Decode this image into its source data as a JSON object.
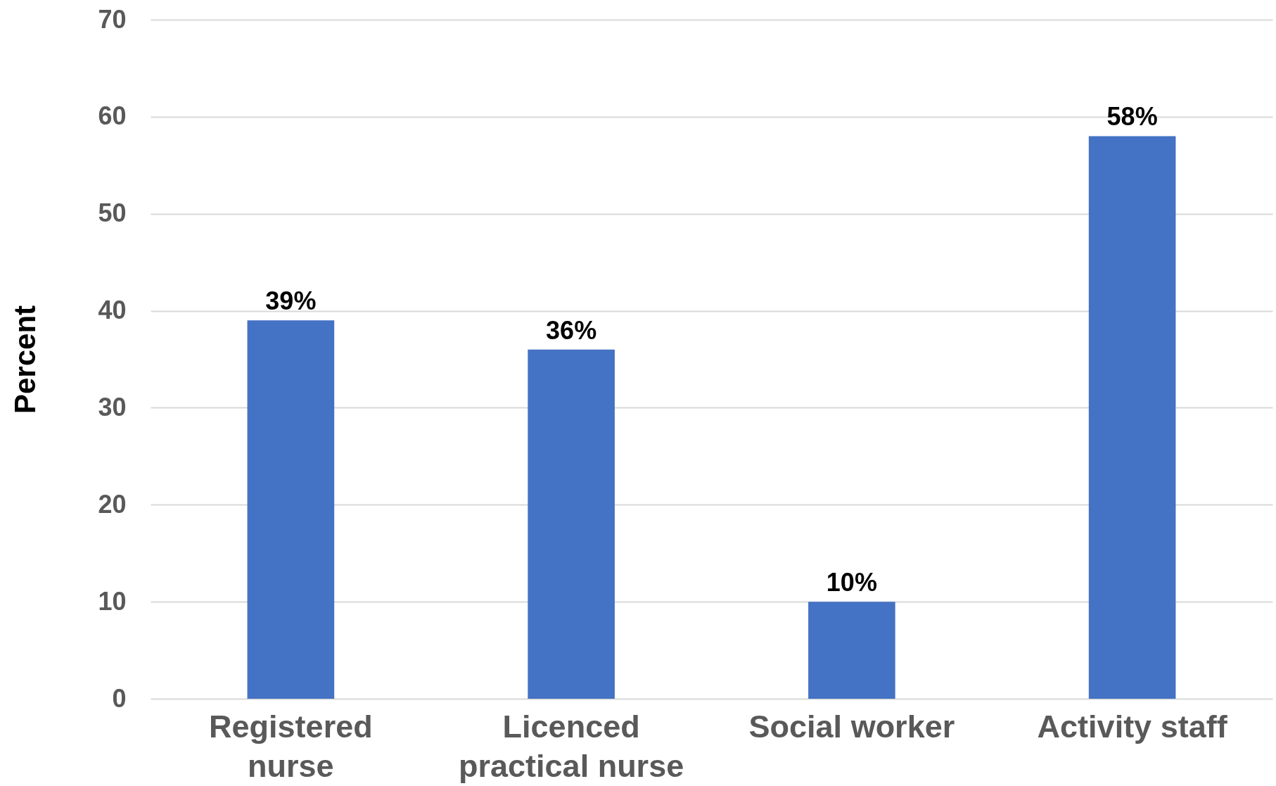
{
  "chart_data": {
    "type": "bar",
    "ylabel": "Percent",
    "categories": [
      "Registered nurse",
      "Licenced practical nurse",
      "Social worker",
      "Activity staff"
    ],
    "values": [
      39,
      36,
      10,
      58
    ],
    "value_labels": [
      "39%",
      "36%",
      "10%",
      "58%"
    ],
    "color": "#4472c4",
    "ylim": [
      0,
      70
    ],
    "yticks": [
      0,
      10,
      20,
      30,
      40,
      50,
      60,
      70
    ],
    "grid": "y"
  }
}
